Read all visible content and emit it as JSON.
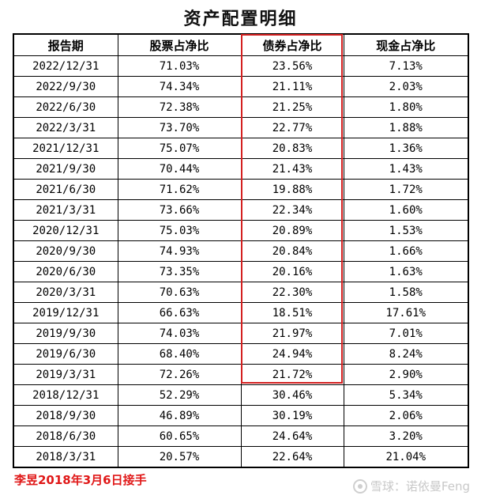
{
  "title": "资产配置明细",
  "table": {
    "headers": [
      "报告期",
      "股票占净比",
      "债券占净比",
      "现金占净比"
    ],
    "rows": [
      [
        "2022/12/31",
        "71.03%",
        "23.56%",
        "7.13%"
      ],
      [
        "2022/9/30",
        "74.34%",
        "21.11%",
        "2.03%"
      ],
      [
        "2022/6/30",
        "72.38%",
        "21.25%",
        "1.80%"
      ],
      [
        "2022/3/31",
        "73.70%",
        "22.77%",
        "1.88%"
      ],
      [
        "2021/12/31",
        "75.07%",
        "20.83%",
        "1.36%"
      ],
      [
        "2021/9/30",
        "70.44%",
        "21.43%",
        "1.43%"
      ],
      [
        "2021/6/30",
        "71.62%",
        "19.88%",
        "1.72%"
      ],
      [
        "2021/3/31",
        "73.66%",
        "22.34%",
        "1.60%"
      ],
      [
        "2020/12/31",
        "75.03%",
        "20.89%",
        "1.53%"
      ],
      [
        "2020/9/30",
        "74.93%",
        "20.84%",
        "1.66%"
      ],
      [
        "2020/6/30",
        "73.35%",
        "20.16%",
        "1.63%"
      ],
      [
        "2020/3/31",
        "70.63%",
        "22.30%",
        "1.58%"
      ],
      [
        "2019/12/31",
        "66.63%",
        "18.51%",
        "17.61%"
      ],
      [
        "2019/9/30",
        "74.03%",
        "21.97%",
        "7.01%"
      ],
      [
        "2019/6/30",
        "68.40%",
        "24.94%",
        "8.24%"
      ],
      [
        "2019/3/31",
        "72.26%",
        "21.72%",
        "2.90%"
      ],
      [
        "2018/12/31",
        "52.29%",
        "30.46%",
        "5.34%"
      ],
      [
        "2018/9/30",
        "46.89%",
        "30.19%",
        "2.06%"
      ],
      [
        "2018/6/30",
        "60.65%",
        "24.64%",
        "3.20%"
      ],
      [
        "2018/3/31",
        "20.57%",
        "22.64%",
        "21.04%"
      ]
    ]
  },
  "highlight": {
    "column": "债券占净比",
    "color": "#d42020"
  },
  "footnote": {
    "text": "李昱2018年3月6日接手",
    "color": "#e01818"
  },
  "watermark": {
    "icon": "snowball-logo-icon",
    "text": "雪球：诺依曼Feng"
  }
}
